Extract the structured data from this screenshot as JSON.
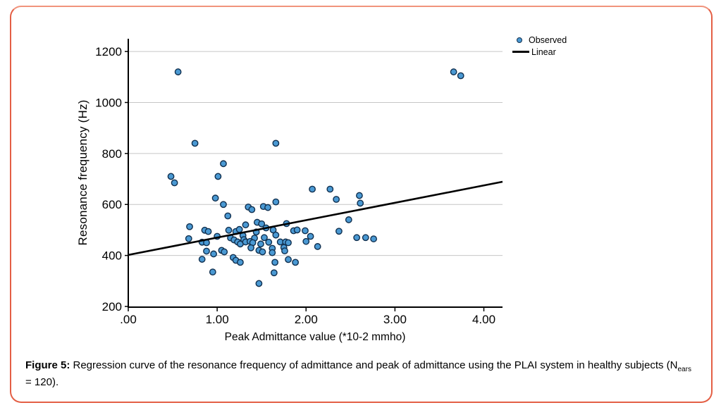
{
  "figure": {
    "caption": {
      "prefix": "Figure 5:",
      "body": " Regression curve of the resonance frequency of admittance and peak of admittance using the PLAI system in healthy subjects (N",
      "subscript": "ears",
      "line2": "= 120)."
    }
  },
  "legend": {
    "observed_label": "Observed",
    "linear_label": "Linear"
  },
  "colors": {
    "border": "#E45F45",
    "grid": "#C6C6C6",
    "axis": "#000000",
    "marker_fill": "#4A99D3",
    "marker_stroke": "#102F4E",
    "regression_line": "#000000"
  },
  "chart_data": {
    "type": "scatter",
    "title": "",
    "xlabel": "Peak Admittance value (*10-2 mmho)",
    "ylabel": "Resonance frequency (Hz)",
    "xlim": [
      0,
      4.21
    ],
    "ylim": [
      200,
      1250
    ],
    "x_ticks": [
      0,
      1,
      2,
      3,
      4
    ],
    "x_tick_labels": [
      ".00",
      "1.00",
      "2.00",
      "3.00",
      "4.00"
    ],
    "y_ticks": [
      200,
      400,
      600,
      800,
      1000,
      1200
    ],
    "y_tick_labels": [
      "200",
      "400",
      "600",
      "800",
      "1000",
      "1200"
    ],
    "grid": "horizontal",
    "legend_position": "top-right",
    "series": [
      {
        "name": "Observed",
        "type": "scatter",
        "points": [
          [
            0.56,
            1120
          ],
          [
            3.66,
            1120
          ],
          [
            3.74,
            1105
          ],
          [
            0.75,
            840
          ],
          [
            1.66,
            840
          ],
          [
            1.07,
            760
          ],
          [
            0.48,
            710
          ],
          [
            0.52,
            685
          ],
          [
            1.01,
            710
          ],
          [
            0.98,
            625
          ],
          [
            1.07,
            600
          ],
          [
            1.66,
            610
          ],
          [
            2.07,
            660
          ],
          [
            2.27,
            660
          ],
          [
            2.34,
            620
          ],
          [
            2.6,
            635
          ],
          [
            2.61,
            605
          ],
          [
            1.35,
            590
          ],
          [
            1.39,
            580
          ],
          [
            1.52,
            592
          ],
          [
            1.57,
            588
          ],
          [
            1.12,
            555
          ],
          [
            2.48,
            540
          ],
          [
            1.32,
            520
          ],
          [
            1.45,
            530
          ],
          [
            1.5,
            524
          ],
          [
            1.55,
            508
          ],
          [
            1.78,
            525
          ],
          [
            0.69,
            513
          ],
          [
            0.86,
            499
          ],
          [
            0.9,
            494
          ],
          [
            1.13,
            499
          ],
          [
            1.21,
            494
          ],
          [
            1.25,
            502
          ],
          [
            1.44,
            492
          ],
          [
            1.63,
            500
          ],
          [
            1.86,
            497
          ],
          [
            1.9,
            500
          ],
          [
            1.99,
            497
          ],
          [
            2.37,
            495
          ],
          [
            0.68,
            466
          ],
          [
            1.0,
            475
          ],
          [
            1.15,
            469
          ],
          [
            1.29,
            478
          ],
          [
            1.42,
            468
          ],
          [
            1.53,
            470
          ],
          [
            1.66,
            480
          ],
          [
            2.05,
            475
          ],
          [
            2.57,
            470
          ],
          [
            2.67,
            470
          ],
          [
            2.76,
            465
          ],
          [
            0.83,
            452
          ],
          [
            0.88,
            450
          ],
          [
            1.19,
            461
          ],
          [
            1.23,
            453
          ],
          [
            1.26,
            445
          ],
          [
            1.3,
            462
          ],
          [
            1.32,
            453
          ],
          [
            1.37,
            455
          ],
          [
            1.4,
            450
          ],
          [
            1.49,
            445
          ],
          [
            1.58,
            452
          ],
          [
            1.71,
            453
          ],
          [
            1.77,
            453
          ],
          [
            1.8,
            450
          ],
          [
            2.0,
            455
          ],
          [
            2.13,
            435
          ],
          [
            0.88,
            417
          ],
          [
            0.96,
            406
          ],
          [
            1.05,
            420
          ],
          [
            1.08,
            414
          ],
          [
            1.38,
            430
          ],
          [
            1.47,
            420
          ],
          [
            1.51,
            414
          ],
          [
            1.62,
            428
          ],
          [
            1.62,
            411
          ],
          [
            1.75,
            431
          ],
          [
            1.76,
            418
          ],
          [
            0.83,
            385
          ],
          [
            1.18,
            392
          ],
          [
            1.21,
            381
          ],
          [
            1.26,
            373
          ],
          [
            1.65,
            373
          ],
          [
            1.8,
            384
          ],
          [
            1.88,
            373
          ],
          [
            0.95,
            335
          ],
          [
            1.64,
            332
          ],
          [
            1.47,
            290
          ]
        ]
      },
      {
        "name": "Linear",
        "type": "line",
        "points": [
          [
            0,
            402
          ],
          [
            4.21,
            689
          ]
        ]
      }
    ]
  }
}
